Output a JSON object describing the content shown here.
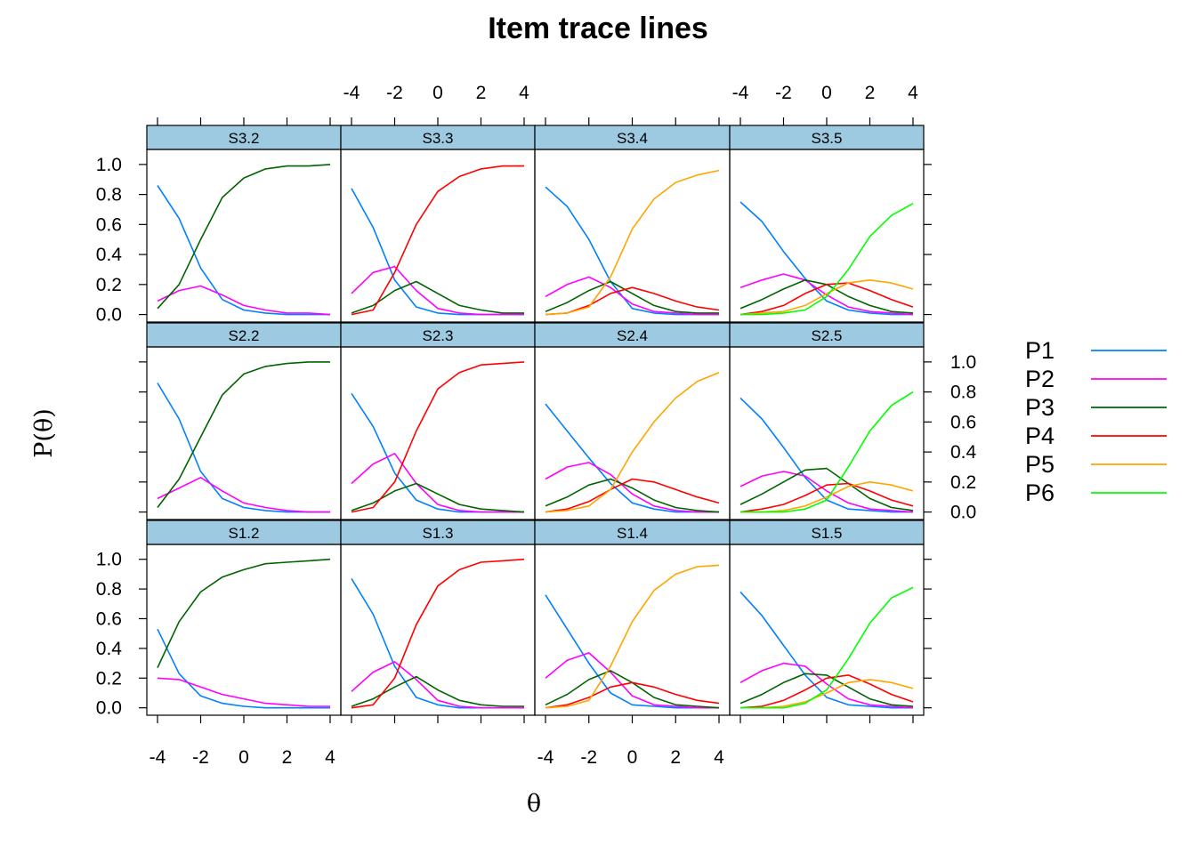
{
  "chart_data": {
    "type": "line",
    "title": "Item trace lines",
    "xlabel": "θ",
    "ylabel": "P(θ)",
    "xlim": [
      -4,
      4
    ],
    "ylim": [
      -0.05,
      1.1
    ],
    "x_ticks": [
      -4,
      -2,
      0,
      2,
      4
    ],
    "y_ticks": [
      0.0,
      0.2,
      0.4,
      0.6,
      0.8,
      1.0
    ],
    "x_tick_labels": [
      "-4",
      "-2",
      "0",
      "2",
      "4"
    ],
    "y_tick_labels": [
      "0.0",
      "0.2",
      "0.4",
      "0.6",
      "0.8",
      "1.0"
    ],
    "x": [
      -4,
      -3,
      -2,
      -1,
      0,
      1,
      2,
      3,
      4
    ],
    "legend": {
      "position": "right",
      "entries": [
        {
          "name": "P1",
          "color": "#0080ff"
        },
        {
          "name": "P2",
          "color": "#ff00ff"
        },
        {
          "name": "P3",
          "color": "#006400"
        },
        {
          "name": "P4",
          "color": "#ff0000"
        },
        {
          "name": "P5",
          "color": "#ffa500"
        },
        {
          "name": "P6",
          "color": "#00ff00"
        }
      ]
    },
    "strip_color": "#9ecae1",
    "panels": [
      {
        "label": "S3.2",
        "series": [
          {
            "name": "P1",
            "values": [
              0.86,
              0.64,
              0.31,
              0.1,
              0.03,
              0.01,
              0.0,
              0.0,
              0.0
            ]
          },
          {
            "name": "P2",
            "values": [
              0.09,
              0.16,
              0.19,
              0.13,
              0.06,
              0.03,
              0.01,
              0.01,
              0.0
            ]
          },
          {
            "name": "P3",
            "values": [
              0.04,
              0.2,
              0.5,
              0.78,
              0.91,
              0.97,
              0.99,
              0.99,
              1.0
            ]
          }
        ]
      },
      {
        "label": "S3.3",
        "series": [
          {
            "name": "P1",
            "values": [
              0.84,
              0.58,
              0.23,
              0.05,
              0.01,
              0.0,
              0.0,
              0.0,
              0.0
            ]
          },
          {
            "name": "P2",
            "values": [
              0.14,
              0.28,
              0.32,
              0.16,
              0.04,
              0.01,
              0.0,
              0.0,
              0.0
            ]
          },
          {
            "name": "P3",
            "values": [
              0.01,
              0.06,
              0.16,
              0.22,
              0.14,
              0.06,
              0.03,
              0.01,
              0.01
            ]
          },
          {
            "name": "P4",
            "values": [
              0.0,
              0.03,
              0.28,
              0.6,
              0.82,
              0.92,
              0.97,
              0.99,
              0.99
            ]
          }
        ]
      },
      {
        "label": "S3.4",
        "series": [
          {
            "name": "P1",
            "values": [
              0.85,
              0.72,
              0.5,
              0.22,
              0.04,
              0.01,
              0.0,
              0.0,
              0.0
            ]
          },
          {
            "name": "P2",
            "values": [
              0.12,
              0.2,
              0.25,
              0.18,
              0.07,
              0.02,
              0.01,
              0.0,
              0.0
            ]
          },
          {
            "name": "P3",
            "values": [
              0.02,
              0.08,
              0.16,
              0.22,
              0.14,
              0.06,
              0.02,
              0.01,
              0.01
            ]
          },
          {
            "name": "P4",
            "values": [
              0.0,
              0.01,
              0.06,
              0.14,
              0.18,
              0.14,
              0.09,
              0.05,
              0.03
            ]
          },
          {
            "name": "P5",
            "values": [
              0.0,
              0.01,
              0.05,
              0.25,
              0.57,
              0.77,
              0.88,
              0.93,
              0.96
            ]
          }
        ]
      },
      {
        "label": "S3.5",
        "series": [
          {
            "name": "P1",
            "values": [
              0.75,
              0.62,
              0.42,
              0.24,
              0.09,
              0.03,
              0.01,
              0.0,
              0.0
            ]
          },
          {
            "name": "P2",
            "values": [
              0.18,
              0.23,
              0.27,
              0.23,
              0.13,
              0.05,
              0.02,
              0.01,
              0.0
            ]
          },
          {
            "name": "P3",
            "values": [
              0.04,
              0.1,
              0.17,
              0.23,
              0.2,
              0.12,
              0.06,
              0.02,
              0.01
            ]
          },
          {
            "name": "P4",
            "values": [
              0.0,
              0.02,
              0.06,
              0.14,
              0.2,
              0.21,
              0.16,
              0.1,
              0.05
            ]
          },
          {
            "name": "P5",
            "values": [
              0.0,
              0.01,
              0.02,
              0.06,
              0.14,
              0.21,
              0.23,
              0.21,
              0.17
            ]
          },
          {
            "name": "P6",
            "values": [
              0.0,
              0.0,
              0.01,
              0.03,
              0.12,
              0.3,
              0.52,
              0.66,
              0.74
            ]
          }
        ]
      },
      {
        "label": "S2.2",
        "series": [
          {
            "name": "P1",
            "values": [
              0.86,
              0.62,
              0.27,
              0.09,
              0.03,
              0.01,
              0.0,
              0.0,
              0.0
            ]
          },
          {
            "name": "P2",
            "values": [
              0.09,
              0.16,
              0.23,
              0.14,
              0.06,
              0.03,
              0.01,
              0.0,
              0.0
            ]
          },
          {
            "name": "P3",
            "values": [
              0.03,
              0.22,
              0.5,
              0.78,
              0.92,
              0.97,
              0.99,
              1.0,
              1.0
            ]
          }
        ]
      },
      {
        "label": "S2.3",
        "series": [
          {
            "name": "P1",
            "values": [
              0.79,
              0.57,
              0.26,
              0.08,
              0.02,
              0.0,
              0.0,
              0.0,
              0.0
            ]
          },
          {
            "name": "P2",
            "values": [
              0.19,
              0.32,
              0.39,
              0.19,
              0.05,
              0.01,
              0.0,
              0.0,
              0.0
            ]
          },
          {
            "name": "P3",
            "values": [
              0.01,
              0.06,
              0.14,
              0.19,
              0.12,
              0.05,
              0.02,
              0.01,
              0.0
            ]
          },
          {
            "name": "P4",
            "values": [
              0.0,
              0.03,
              0.2,
              0.54,
              0.82,
              0.93,
              0.98,
              0.99,
              1.0
            ]
          }
        ]
      },
      {
        "label": "S2.4",
        "series": [
          {
            "name": "P1",
            "values": [
              0.72,
              0.54,
              0.36,
              0.19,
              0.06,
              0.02,
              0.0,
              0.0,
              0.0
            ]
          },
          {
            "name": "P2",
            "values": [
              0.22,
              0.3,
              0.33,
              0.25,
              0.12,
              0.04,
              0.01,
              0.0,
              0.0
            ]
          },
          {
            "name": "P3",
            "values": [
              0.04,
              0.1,
              0.18,
              0.22,
              0.16,
              0.08,
              0.03,
              0.01,
              0.0
            ]
          },
          {
            "name": "P4",
            "values": [
              0.0,
              0.02,
              0.07,
              0.15,
              0.22,
              0.2,
              0.15,
              0.1,
              0.06
            ]
          },
          {
            "name": "P5",
            "values": [
              0.0,
              0.01,
              0.04,
              0.15,
              0.4,
              0.6,
              0.76,
              0.87,
              0.93
            ]
          }
        ]
      },
      {
        "label": "S2.5",
        "series": [
          {
            "name": "P1",
            "values": [
              0.76,
              0.62,
              0.43,
              0.23,
              0.08,
              0.02,
              0.01,
              0.0,
              0.0
            ]
          },
          {
            "name": "P2",
            "values": [
              0.17,
              0.24,
              0.27,
              0.24,
              0.14,
              0.06,
              0.02,
              0.01,
              0.0
            ]
          },
          {
            "name": "P3",
            "values": [
              0.05,
              0.12,
              0.2,
              0.28,
              0.29,
              0.19,
              0.09,
              0.03,
              0.01
            ]
          },
          {
            "name": "P4",
            "values": [
              0.0,
              0.02,
              0.05,
              0.11,
              0.18,
              0.19,
              0.14,
              0.08,
              0.04
            ]
          },
          {
            "name": "P5",
            "values": [
              0.0,
              0.0,
              0.01,
              0.04,
              0.1,
              0.17,
              0.2,
              0.18,
              0.14
            ]
          },
          {
            "name": "P6",
            "values": [
              0.0,
              0.0,
              0.0,
              0.02,
              0.08,
              0.3,
              0.54,
              0.71,
              0.8
            ]
          }
        ]
      },
      {
        "label": "S1.2",
        "series": [
          {
            "name": "P1",
            "values": [
              0.53,
              0.23,
              0.08,
              0.03,
              0.01,
              0.0,
              0.0,
              0.0,
              0.0
            ]
          },
          {
            "name": "P2",
            "values": [
              0.2,
              0.19,
              0.14,
              0.09,
              0.06,
              0.03,
              0.02,
              0.01,
              0.01
            ]
          },
          {
            "name": "P3",
            "values": [
              0.27,
              0.58,
              0.78,
              0.88,
              0.93,
              0.97,
              0.98,
              0.99,
              1.0
            ]
          }
        ]
      },
      {
        "label": "S1.3",
        "series": [
          {
            "name": "P1",
            "values": [
              0.87,
              0.63,
              0.28,
              0.07,
              0.02,
              0.0,
              0.0,
              0.0,
              0.0
            ]
          },
          {
            "name": "P2",
            "values": [
              0.11,
              0.24,
              0.31,
              0.19,
              0.05,
              0.01,
              0.0,
              0.0,
              0.0
            ]
          },
          {
            "name": "P3",
            "values": [
              0.01,
              0.06,
              0.14,
              0.21,
              0.12,
              0.05,
              0.02,
              0.01,
              0.01
            ]
          },
          {
            "name": "P4",
            "values": [
              0.0,
              0.02,
              0.2,
              0.56,
              0.82,
              0.93,
              0.98,
              0.99,
              1.0
            ]
          }
        ]
      },
      {
        "label": "S1.4",
        "series": [
          {
            "name": "P1",
            "values": [
              0.76,
              0.53,
              0.3,
              0.1,
              0.02,
              0.01,
              0.0,
              0.0,
              0.0
            ]
          },
          {
            "name": "P2",
            "values": [
              0.2,
              0.32,
              0.37,
              0.24,
              0.08,
              0.02,
              0.01,
              0.0,
              0.0
            ]
          },
          {
            "name": "P3",
            "values": [
              0.02,
              0.09,
              0.19,
              0.25,
              0.17,
              0.07,
              0.02,
              0.01,
              0.0
            ]
          },
          {
            "name": "P4",
            "values": [
              0.0,
              0.02,
              0.07,
              0.14,
              0.17,
              0.14,
              0.09,
              0.05,
              0.03
            ]
          },
          {
            "name": "P5",
            "values": [
              0.0,
              0.01,
              0.05,
              0.28,
              0.58,
              0.79,
              0.9,
              0.95,
              0.96
            ]
          }
        ]
      },
      {
        "label": "S1.5",
        "series": [
          {
            "name": "P1",
            "values": [
              0.78,
              0.62,
              0.42,
              0.22,
              0.07,
              0.02,
              0.01,
              0.0,
              0.0
            ]
          },
          {
            "name": "P2",
            "values": [
              0.17,
              0.25,
              0.3,
              0.28,
              0.16,
              0.06,
              0.02,
              0.01,
              0.0
            ]
          },
          {
            "name": "P3",
            "values": [
              0.03,
              0.09,
              0.17,
              0.23,
              0.22,
              0.14,
              0.06,
              0.02,
              0.01
            ]
          },
          {
            "name": "P4",
            "values": [
              0.0,
              0.01,
              0.05,
              0.12,
              0.2,
              0.22,
              0.16,
              0.09,
              0.04
            ]
          },
          {
            "name": "P5",
            "values": [
              0.0,
              0.0,
              0.01,
              0.04,
              0.1,
              0.17,
              0.19,
              0.17,
              0.13
            ]
          },
          {
            "name": "P6",
            "values": [
              0.0,
              0.0,
              0.0,
              0.03,
              0.12,
              0.33,
              0.57,
              0.74,
              0.81
            ]
          }
        ]
      }
    ]
  }
}
